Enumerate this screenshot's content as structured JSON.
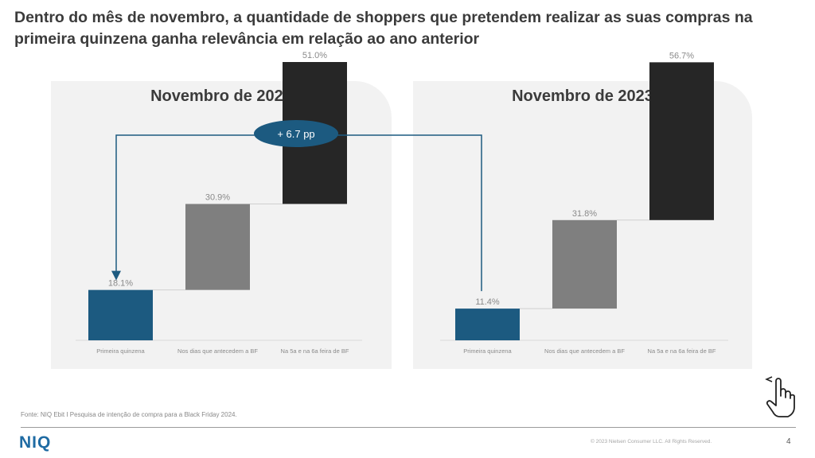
{
  "headline": "Dentro do mês de novembro, a quantidade de shoppers que pretendem realizar as suas compras na primeira quinzena ganha relevância em relação ao ano anterior",
  "callout": {
    "label": "+ 6.7 pp"
  },
  "chart_data": [
    {
      "type": "bar",
      "title": "Novembro de 2024",
      "categories": [
        "Primeira quinzena",
        "Nos dias que antecedem a BF",
        "Na 5a e na 6a feira de BF"
      ],
      "values": [
        18.1,
        30.9,
        51.0
      ],
      "labels": [
        "18.1%",
        "30.9%",
        "51.0%"
      ],
      "ylim": [
        0,
        100
      ],
      "colors": [
        "#1c5a80",
        "#7f7f7f",
        "#262626"
      ]
    },
    {
      "type": "bar",
      "title": "Novembro de 2023",
      "categories": [
        "Primeira quinzena",
        "Nos dias que antecedem a BF",
        "Na 5a e na 6a feira de BF"
      ],
      "values": [
        11.4,
        31.8,
        56.7
      ],
      "labels": [
        "11.4%",
        "31.8%",
        "56.7%"
      ],
      "ylim": [
        0,
        100
      ],
      "colors": [
        "#1c5a80",
        "#7f7f7f",
        "#262626"
      ]
    }
  ],
  "footer": {
    "source": "Fonte: NIQ Ebit I Pesquisa de intenção de compra para a Black Friday 2024.",
    "logo": "NIQ",
    "copyright": "© 2023 Nielsen Consumer LLC. All Rights Reserved.",
    "page_number": "4"
  },
  "icons": {
    "cursor": "pointer-hand-icon"
  }
}
